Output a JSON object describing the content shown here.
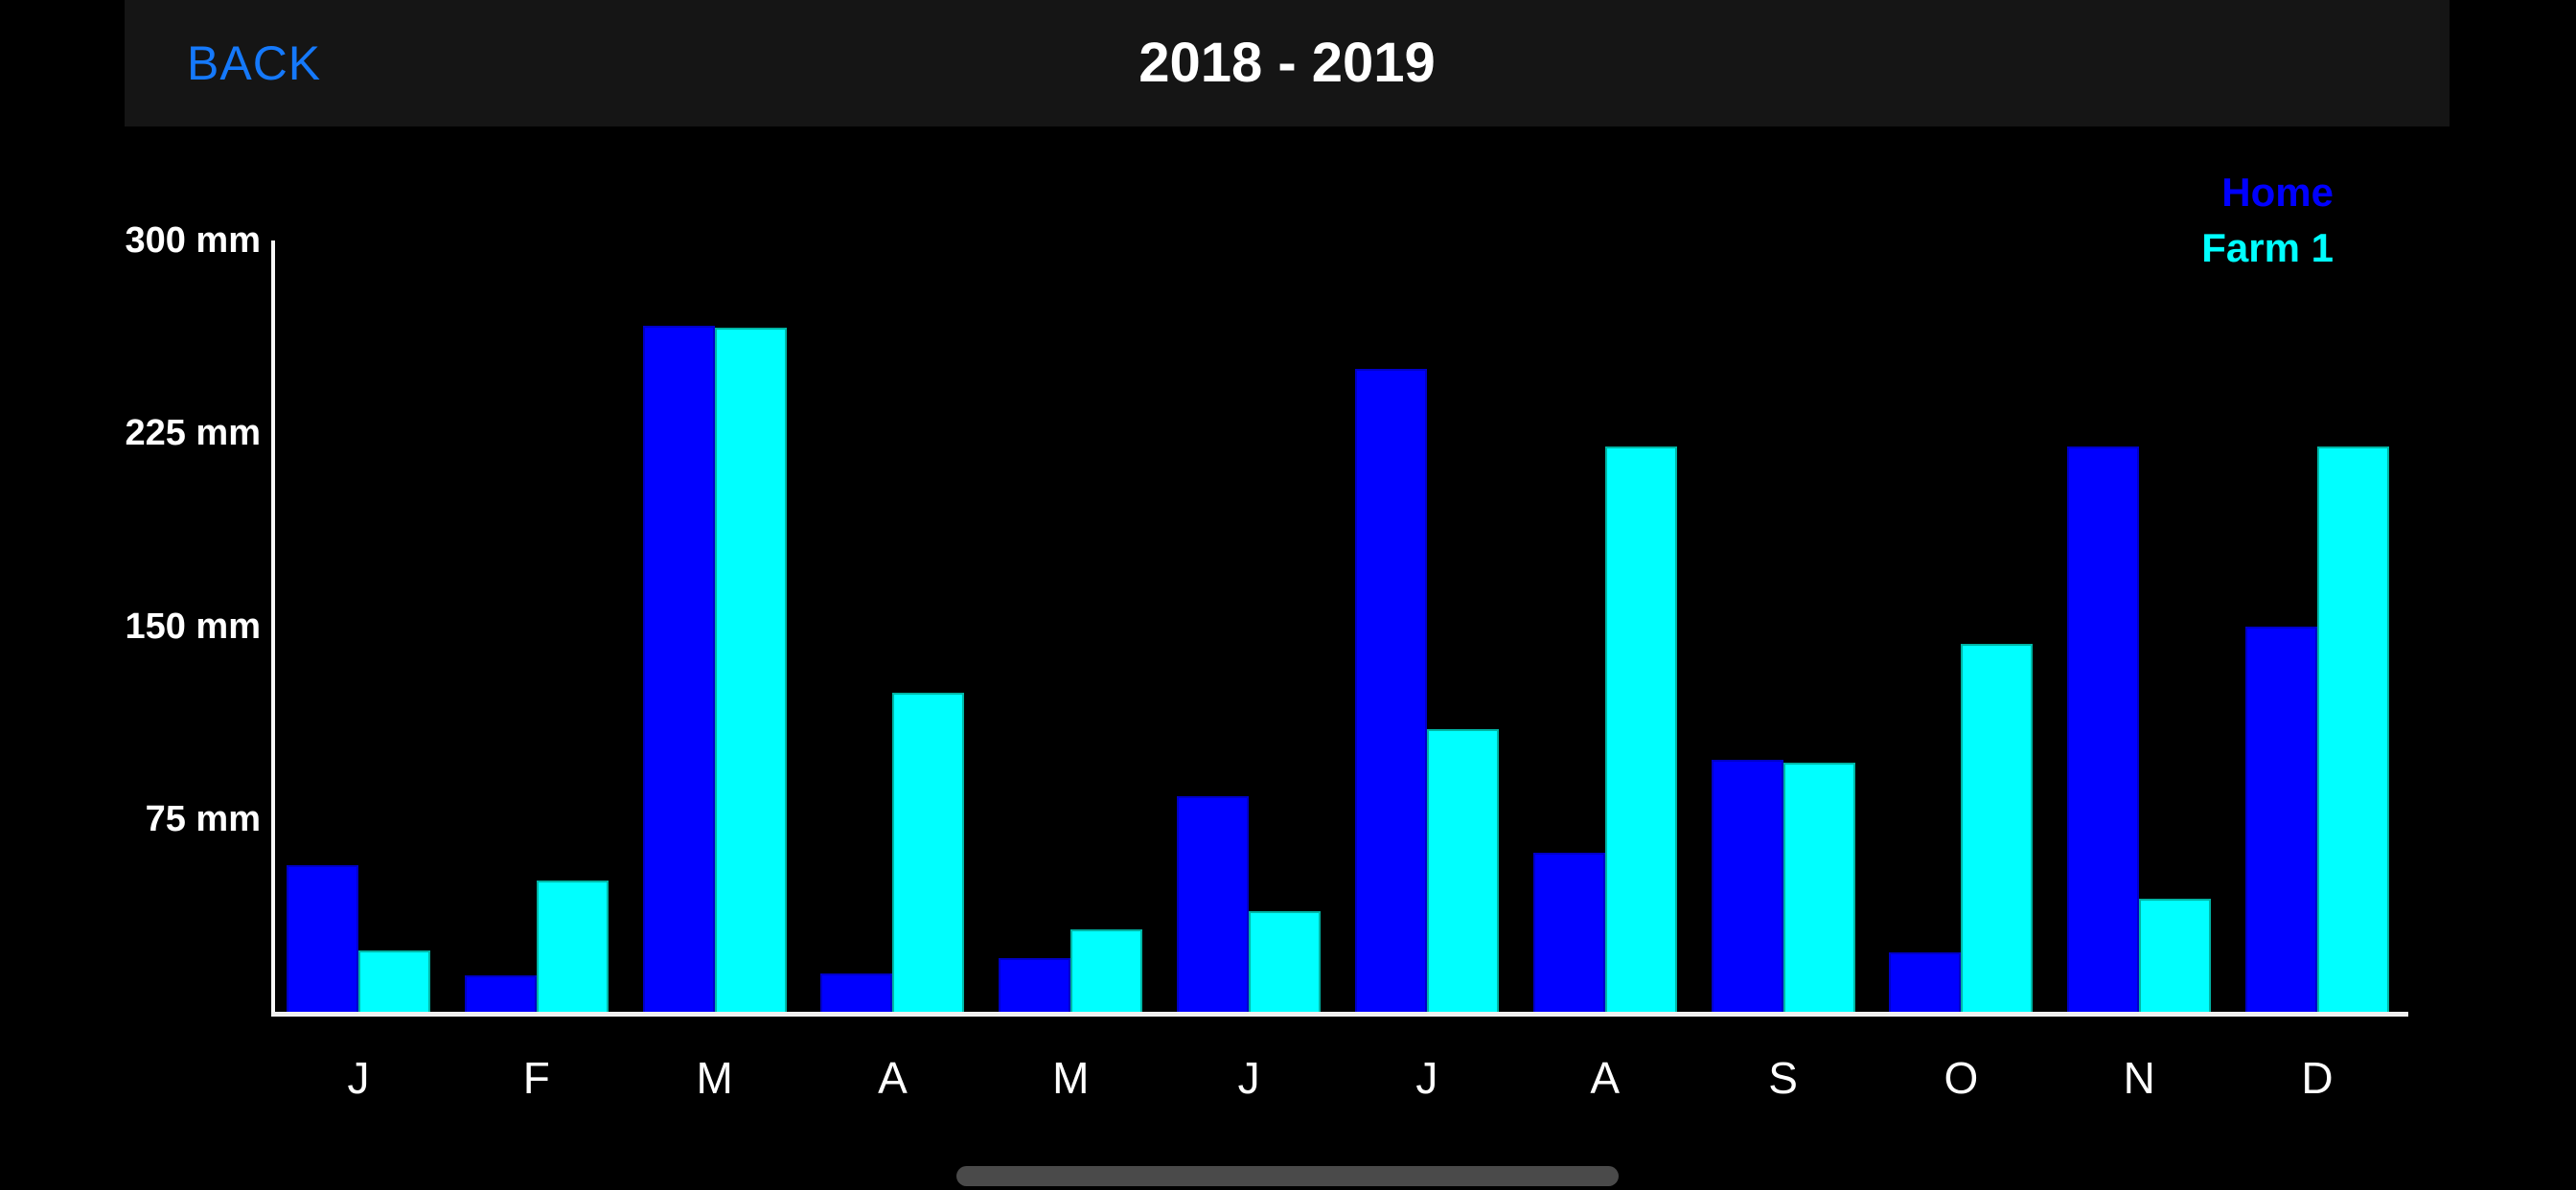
{
  "nav": {
    "back_label": "BACK",
    "title": "2018 - 2019"
  },
  "legend": {
    "items": [
      {
        "label": "Home",
        "color": "#0000ff"
      },
      {
        "label": "Farm 1",
        "color": "#00ffff"
      }
    ]
  },
  "chart_data": {
    "type": "bar",
    "title": "2018 - 2019",
    "categories": [
      "J",
      "F",
      "M",
      "A",
      "M",
      "J",
      "J",
      "A",
      "S",
      "O",
      "N",
      "D"
    ],
    "series": [
      {
        "name": "Home",
        "color": "#0000ff",
        "border_color": "#0000c8",
        "values": [
          57,
          14,
          267,
          15,
          21,
          84,
          250,
          62,
          98,
          23,
          220,
          150
        ]
      },
      {
        "name": "Farm 1",
        "color": "#00ffff",
        "border_color": "#00b5a5",
        "values": [
          24,
          51,
          266,
          124,
          32,
          39,
          110,
          220,
          97,
          143,
          44,
          220
        ]
      }
    ],
    "y_axis": {
      "unit": "mm",
      "ylim": [
        0,
        300
      ],
      "ticks": [
        {
          "value": 300,
          "label": "300 mm"
        },
        {
          "value": 225,
          "label": "225 mm"
        },
        {
          "value": 150,
          "label": "150 mm"
        },
        {
          "value": 75,
          "label": "75 mm"
        }
      ]
    },
    "xlabel": "",
    "ylabel": "",
    "legend_position": "top-right",
    "grid": false,
    "background": "#000000"
  },
  "colors": {
    "back_button": "#1579fb",
    "nav_bar": "#151515",
    "axis": "#f5f5f5",
    "home_indicator": "#4a4a4a"
  }
}
